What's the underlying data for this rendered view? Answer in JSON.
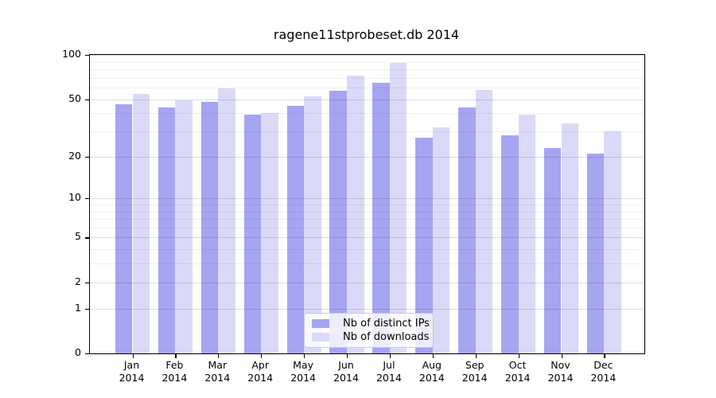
{
  "title": "ragene11stprobeset.db 2014",
  "chart_data": {
    "type": "bar",
    "title": "ragene11stprobeset.db 2014",
    "categories": [
      "Jan",
      "Feb",
      "Mar",
      "Apr",
      "May",
      "Jun",
      "Jul",
      "Aug",
      "Sep",
      "Oct",
      "Nov",
      "Dec"
    ],
    "category_year": "2014",
    "series": [
      {
        "name": "Nb of distinct IPs",
        "color": "#a5a5f1",
        "values": [
          46,
          44,
          48,
          39,
          45,
          57,
          65,
          27,
          44,
          28,
          23,
          21
        ]
      },
      {
        "name": "Nb of downloads",
        "color": "#dadaf8",
        "values": [
          54,
          49,
          59,
          40,
          52,
          72,
          88,
          32,
          58,
          39,
          34,
          30
        ]
      }
    ],
    "ylabel": "",
    "xlabel": "",
    "ylim": [
      0,
      100
    ],
    "yscale": "log1p",
    "ytick_values": [
      0,
      1,
      2,
      5,
      10,
      20,
      50,
      100
    ],
    "ytick_labels": [
      "0",
      "1",
      "2",
      "5",
      "10",
      "20",
      "50",
      "100"
    ],
    "minor_ytick_values": [
      3,
      4,
      6,
      7,
      8,
      9,
      30,
      40,
      60,
      70,
      80,
      90
    ],
    "grid": true,
    "legend_position": "lower center",
    "legend_labels": [
      "Nb of distinct IPs",
      "Nb of downloads"
    ]
  }
}
